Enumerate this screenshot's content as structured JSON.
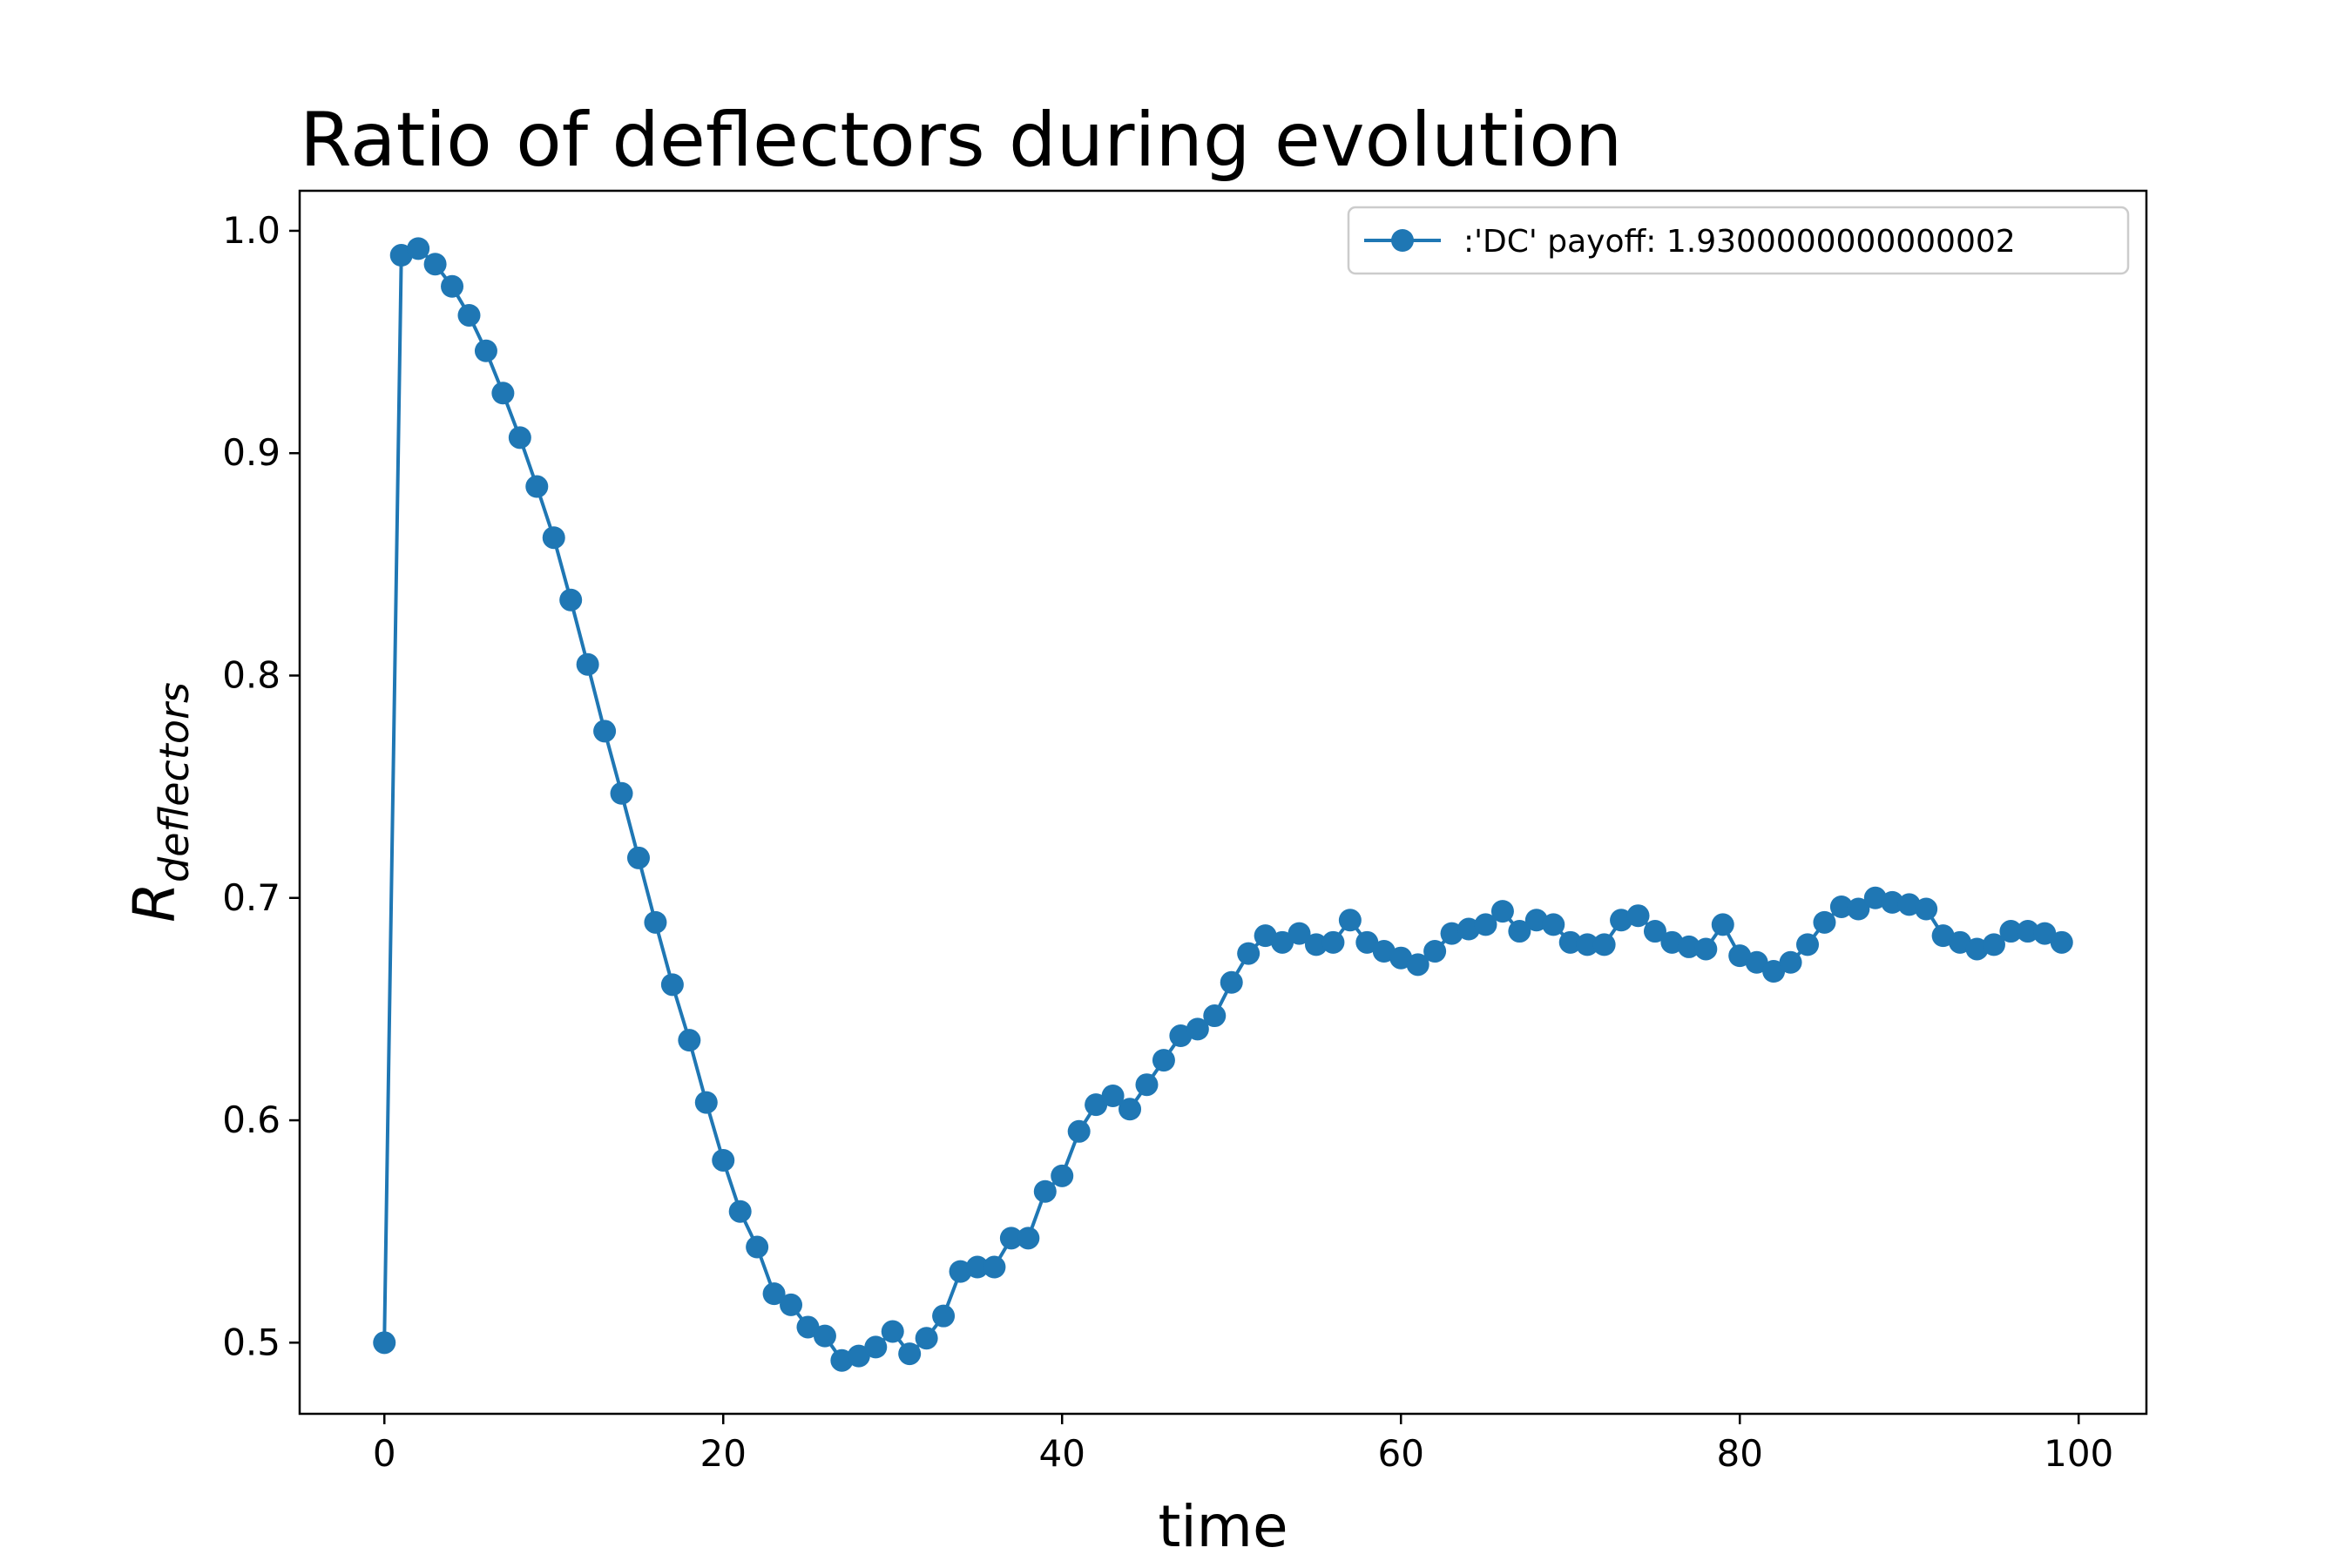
{
  "chart_data": {
    "type": "line",
    "title": "Ratio of deflectors during evolution",
    "xlabel": "time",
    "ylabel": {
      "base": "R",
      "subscript": "deflectors"
    },
    "xlim": [
      -5,
      104
    ],
    "ylim": [
      0.468,
      1.018
    ],
    "xticks": [
      0,
      20,
      40,
      60,
      80,
      100
    ],
    "yticks": [
      0.5,
      0.6,
      0.7,
      0.8,
      0.9,
      1.0
    ],
    "xtick_labels": [
      "0",
      "20",
      "40",
      "60",
      "80",
      "100"
    ],
    "ytick_labels": [
      "0.5",
      "0.6",
      "0.7",
      "0.8",
      "0.9",
      "1.0"
    ],
    "grid": false,
    "legend_position": "top-right",
    "series": [
      {
        "name": ":'DC' payoff: 1.9300000000000002",
        "color": "#1f77b4",
        "marker": "circle",
        "x": [
          0,
          1,
          2,
          3,
          4,
          5,
          6,
          7,
          8,
          9,
          10,
          11,
          12,
          13,
          14,
          15,
          16,
          17,
          18,
          19,
          20,
          21,
          22,
          23,
          24,
          25,
          26,
          27,
          28,
          29,
          30,
          31,
          32,
          33,
          34,
          35,
          36,
          37,
          38,
          39,
          40,
          41,
          42,
          43,
          44,
          45,
          46,
          47,
          48,
          49,
          50,
          51,
          52,
          53,
          54,
          55,
          56,
          57,
          58,
          59,
          60,
          61,
          62,
          63,
          64,
          65,
          66,
          67,
          68,
          69,
          70,
          71,
          72,
          73,
          74,
          75,
          76,
          77,
          78,
          79,
          80,
          81,
          82,
          83,
          84,
          85,
          86,
          87,
          88,
          89,
          90,
          91,
          92,
          93,
          94,
          95,
          96,
          97,
          98,
          99
        ],
        "values": [
          0.5,
          0.989,
          0.992,
          0.985,
          0.975,
          0.962,
          0.946,
          0.927,
          0.907,
          0.885,
          0.862,
          0.834,
          0.805,
          0.775,
          0.747,
          0.718,
          0.689,
          0.661,
          0.636,
          0.608,
          0.582,
          0.559,
          0.543,
          0.522,
          0.517,
          0.507,
          0.503,
          0.492,
          0.494,
          0.498,
          0.505,
          0.495,
          0.502,
          0.512,
          0.532,
          0.534,
          0.534,
          0.547,
          0.547,
          0.568,
          0.575,
          0.595,
          0.607,
          0.611,
          0.605,
          0.616,
          0.627,
          0.638,
          0.641,
          0.647,
          0.662,
          0.675,
          0.683,
          0.68,
          0.684,
          0.679,
          0.68,
          0.69,
          0.68,
          0.676,
          0.673,
          0.67,
          0.676,
          0.684,
          0.686,
          0.688,
          0.694,
          0.685,
          0.69,
          0.688,
          0.68,
          0.679,
          0.679,
          0.69,
          0.692,
          0.685,
          0.68,
          0.678,
          0.677,
          0.688,
          0.674,
          0.671,
          0.667,
          0.671,
          0.679,
          0.689,
          0.696,
          0.695,
          0.7,
          0.698,
          0.697,
          0.695,
          0.683,
          0.68,
          0.677,
          0.679,
          0.685,
          0.685,
          0.684,
          0.68
        ]
      }
    ]
  }
}
